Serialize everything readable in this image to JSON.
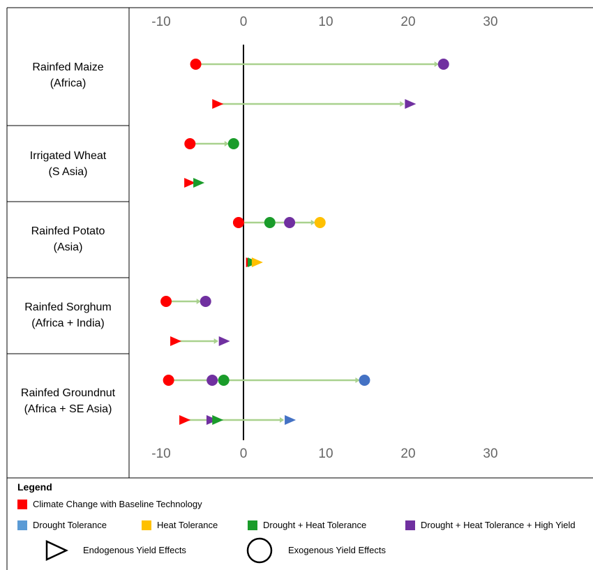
{
  "chart_data": {
    "type": "dumbbell",
    "x_ticks": [
      -10,
      0,
      10,
      20,
      30
    ],
    "xlim": [
      -13,
      37
    ],
    "crops": [
      {
        "label_line1": "Rainfed Maize",
        "label_line2": "(Africa)",
        "exogenous": [
          {
            "series": "climate_change",
            "value": -5.8
          },
          {
            "series": "dht_high_yield",
            "value": 24.3
          }
        ],
        "endogenous": [
          {
            "series": "climate_change",
            "value": -3.2
          },
          {
            "series": "dht_high_yield",
            "value": 20.2
          }
        ]
      },
      {
        "label_line1": "Irrigated Wheat",
        "label_line2": "(S Asia)",
        "exogenous": [
          {
            "series": "climate_change",
            "value": -6.5
          },
          {
            "series": "drought_heat",
            "value": -1.2
          }
        ],
        "endogenous": [
          {
            "series": "climate_change",
            "value": -6.6
          },
          {
            "series": "drought_heat",
            "value": -5.5
          }
        ]
      },
      {
        "label_line1": "Rainfed Potato",
        "label_line2": "(Asia)",
        "exogenous": [
          {
            "series": "climate_change",
            "value": -0.6
          },
          {
            "series": "drought_heat",
            "value": 3.2
          },
          {
            "series": "dht_high_yield",
            "value": 5.6
          },
          {
            "series": "heat",
            "value": 9.3
          }
        ],
        "endogenous": [
          {
            "series": "climate_change",
            "value": 0.9
          },
          {
            "series": "drought_heat",
            "value": 1.1
          },
          {
            "series": "heat",
            "value": 1.6
          }
        ]
      },
      {
        "label_line1": "Rainfed Sorghum",
        "label_line2": "(Africa + India)",
        "exogenous": [
          {
            "series": "climate_change",
            "value": -9.4
          },
          {
            "series": "dht_high_yield",
            "value": -4.6
          }
        ],
        "endogenous": [
          {
            "series": "climate_change",
            "value": -8.3
          },
          {
            "series": "dht_high_yield",
            "value": -2.4
          }
        ]
      },
      {
        "label_line1": "Rainfed Groundnut",
        "label_line2": "(Africa + SE Asia)",
        "exogenous": [
          {
            "series": "climate_change",
            "value": -9.1
          },
          {
            "series": "dht_high_yield",
            "value": -3.8
          },
          {
            "series": "drought_heat",
            "value": -2.4
          },
          {
            "series": "drought",
            "value": 14.7
          }
        ],
        "endogenous": [
          {
            "series": "climate_change",
            "value": -7.2
          },
          {
            "series": "dht_high_yield",
            "value": -3.9
          },
          {
            "series": "drought_heat",
            "value": -3.2
          },
          {
            "series": "drought",
            "value": 5.6
          }
        ]
      }
    ],
    "series_colors": {
      "climate_change": "#ff0000",
      "drought": "#4472c4",
      "heat": "#ffc000",
      "drought_heat": "#1a9c2a",
      "dht_high_yield": "#7030a0"
    },
    "connector_color": "#a9d18e"
  },
  "legend": {
    "title": "Legend",
    "items": [
      {
        "key": "climate_change",
        "label": "Climate Change with Baseline Technology",
        "color": "#ff0000"
      },
      {
        "key": "drought",
        "label": "Drought Tolerance",
        "color": "#5b9bd5"
      },
      {
        "key": "heat",
        "label": "Heat Tolerance",
        "color": "#ffc000"
      },
      {
        "key": "drought_heat",
        "label": "Drought + Heat Tolerance",
        "color": "#1a9c2a"
      },
      {
        "key": "dht_high_yield",
        "label": "Drought + Heat Tolerance + High Yield",
        "color": "#7030a0"
      }
    ],
    "endogenous_label": "Endogenous Yield Effects",
    "exogenous_label": "Exogenous Yield Effects",
    "endogenous_icon": "triangle-outline-icon",
    "exogenous_icon": "circle-outline-icon"
  }
}
